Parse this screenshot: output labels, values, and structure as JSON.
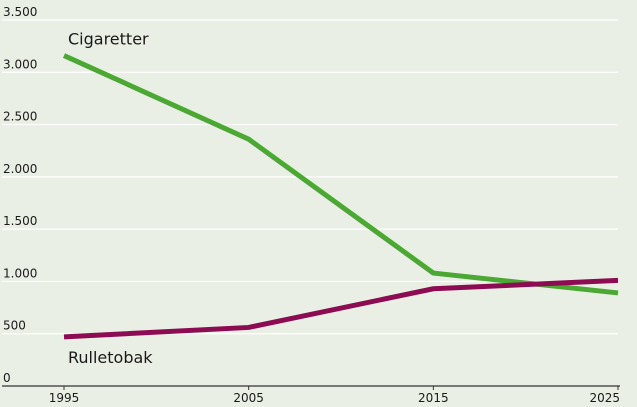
{
  "chart_data": {
    "type": "line",
    "x": [
      1995,
      2005,
      2015,
      2025
    ],
    "series": [
      {
        "name": "Cigaretter",
        "color": "#4aa833",
        "values": [
          3160,
          2360,
          1080,
          890
        ]
      },
      {
        "name": "Rulletobak",
        "color": "#8c0b52",
        "values": [
          470,
          560,
          930,
          1010
        ]
      }
    ],
    "xlim": [
      1995,
      2025
    ],
    "xticks": [
      1995,
      2005,
      2015,
      2025
    ],
    "ylim": [
      0,
      3500
    ],
    "yticks": [
      0,
      500,
      {
        "value": 1000,
        "label": "1.000"
      },
      {
        "value": 1500,
        "label": "1.500"
      },
      {
        "value": 2000,
        "label": "2.000"
      },
      {
        "value": 2500,
        "label": "2.500"
      },
      {
        "value": 3000,
        "label": "3.000"
      },
      {
        "value": 3500,
        "label": "3.500"
      }
    ],
    "grid": true
  }
}
